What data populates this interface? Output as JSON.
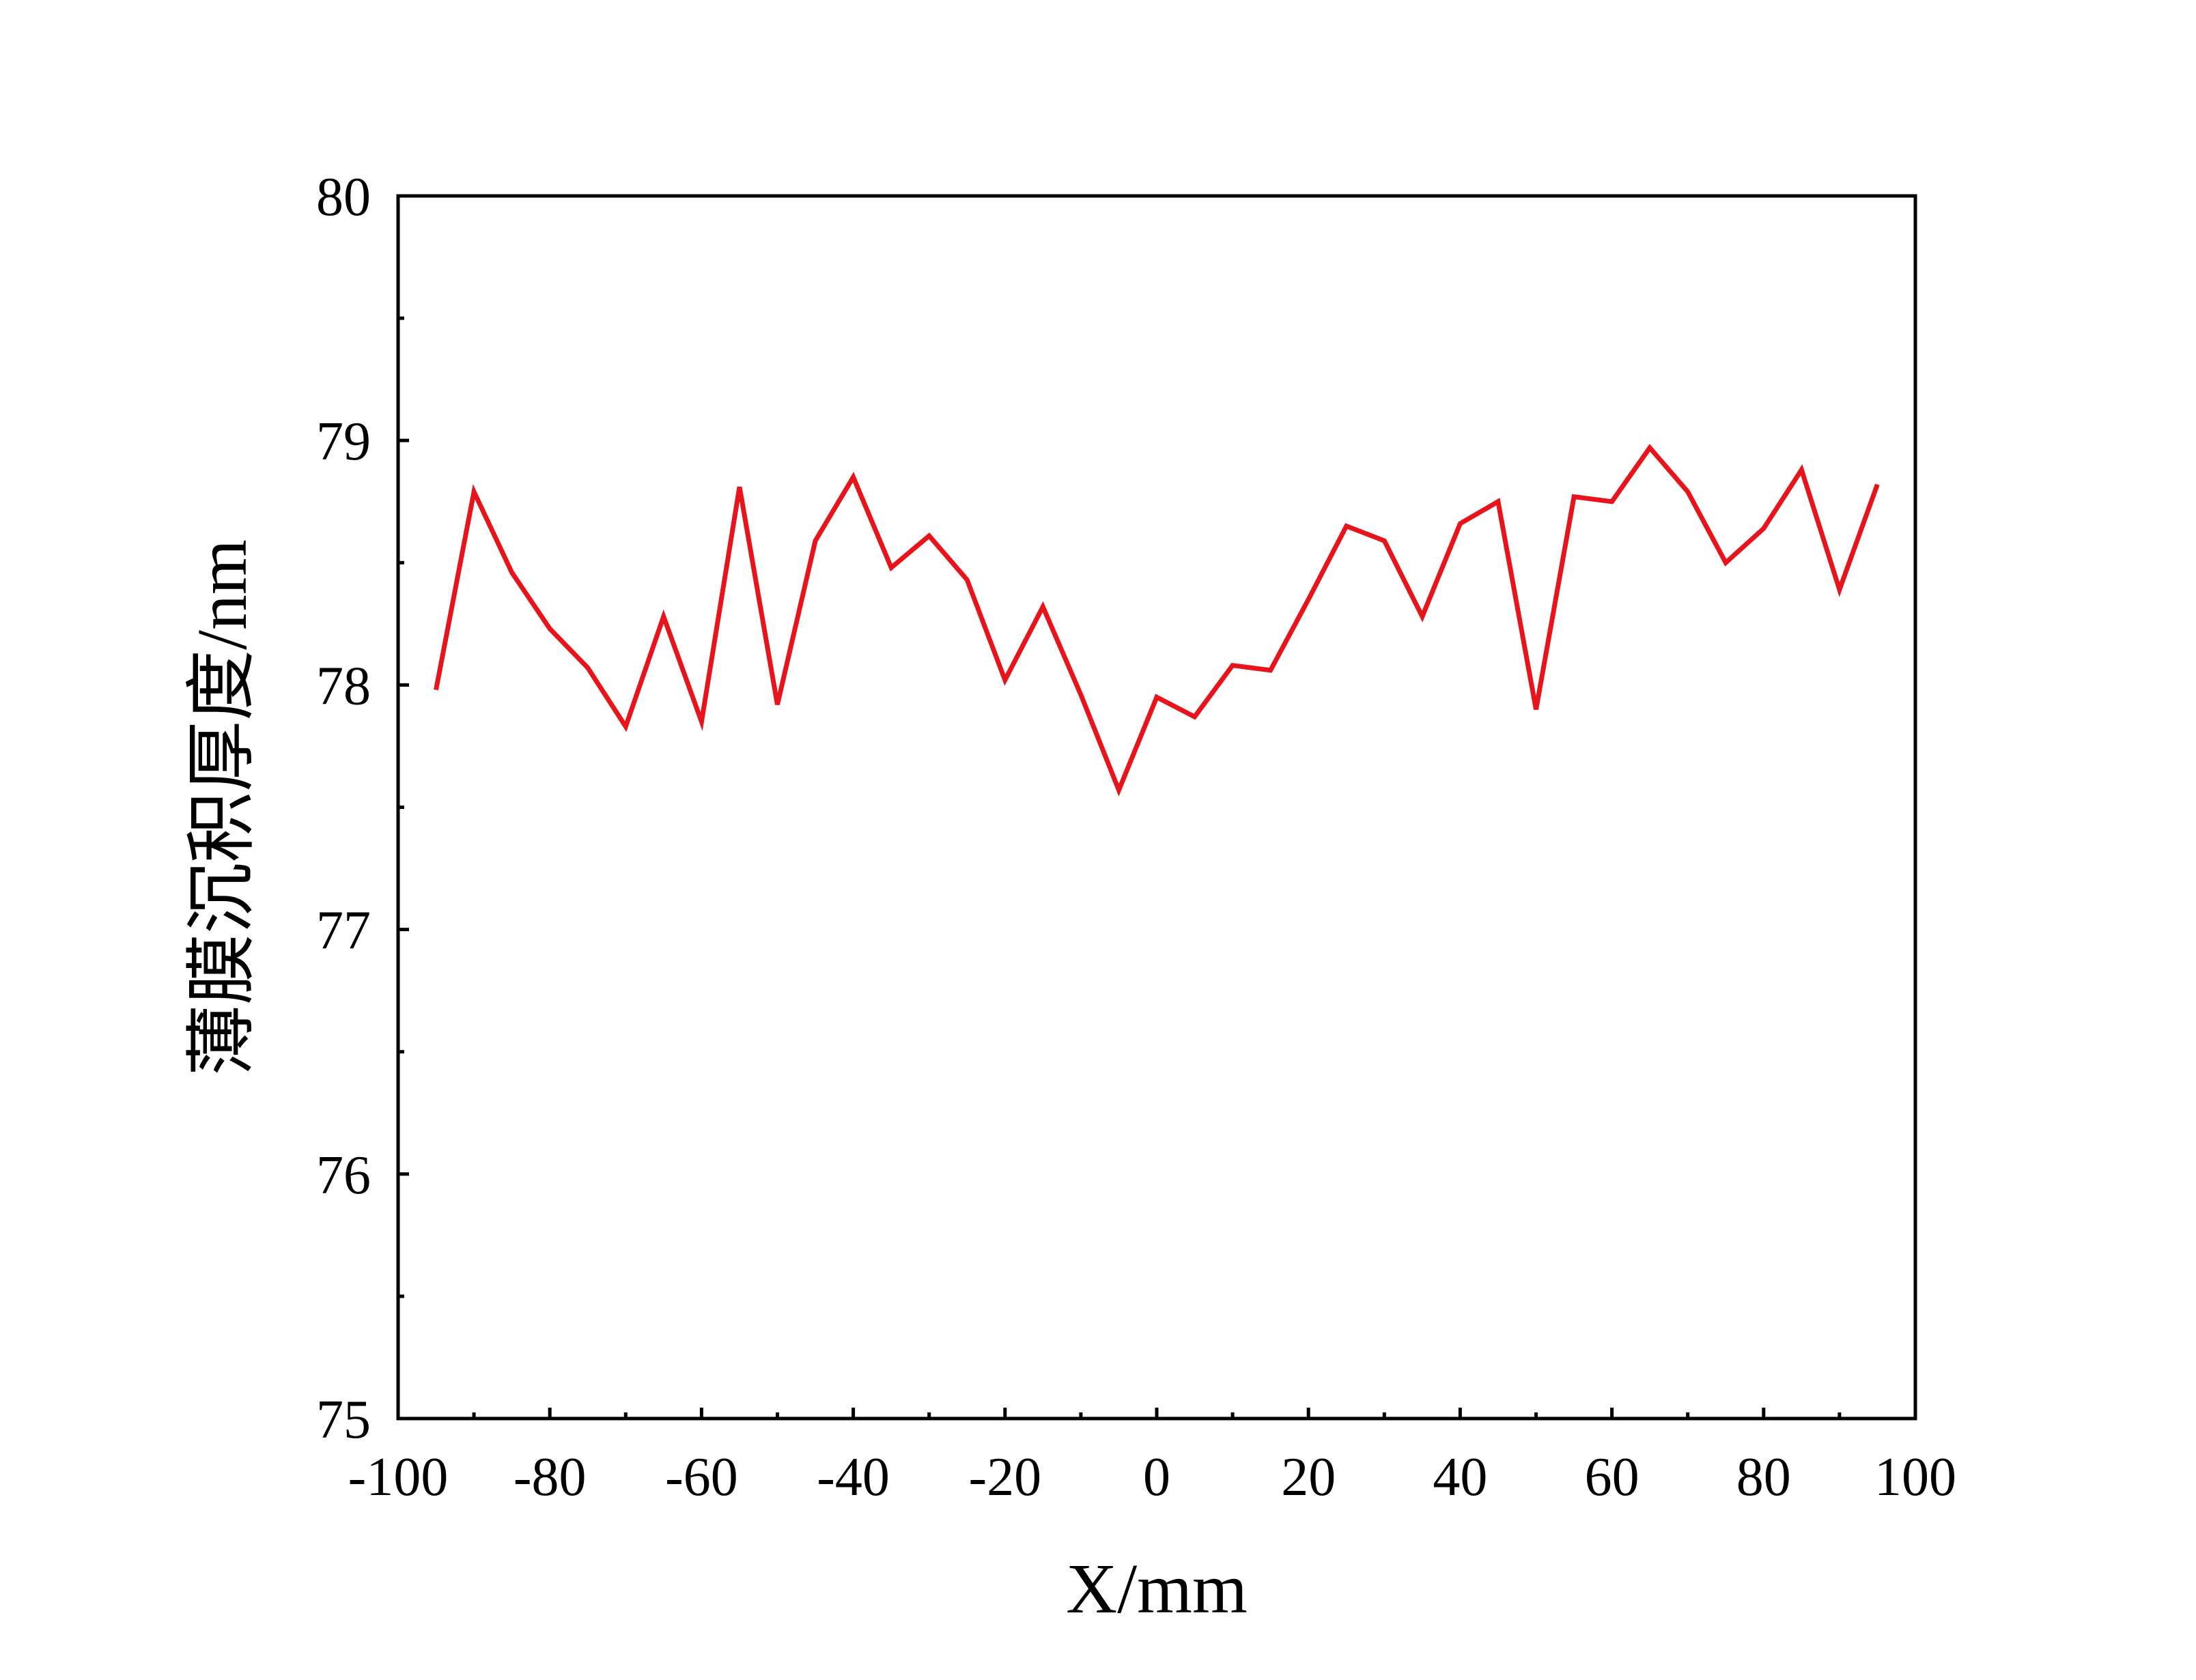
{
  "chart_data": {
    "type": "line",
    "xlabel": "X/mm",
    "ylabel": "薄膜沉积厚度/nm",
    "xlim": [
      -100,
      100
    ],
    "ylim": [
      75,
      80
    ],
    "x_ticks": [
      -100,
      -80,
      -60,
      -40,
      -20,
      0,
      20,
      40,
      60,
      80,
      100
    ],
    "x_tick_labels": [
      "-100",
      "-80",
      "-60",
      "-40",
      "-20",
      "0",
      "20",
      "40",
      "60",
      "80",
      "100"
    ],
    "y_ticks": [
      75,
      76,
      77,
      78,
      79,
      80
    ],
    "y_tick_labels": [
      "75",
      "76",
      "77",
      "78",
      "79",
      "80"
    ],
    "grid": false,
    "line_color": "#e8141b",
    "series": [
      {
        "x": [
          -95,
          -90,
          -85,
          -80,
          -75,
          -70,
          -65,
          -60,
          -55,
          -50,
          -45,
          -40,
          -35,
          -30,
          -25,
          -20,
          -15,
          -10,
          -5,
          0,
          5,
          10,
          15,
          20,
          25,
          30,
          35,
          40,
          45,
          50,
          55,
          60,
          65,
          70,
          75,
          80,
          85,
          90,
          95
        ],
        "values": [
          77.98,
          78.79,
          78.46,
          78.23,
          78.07,
          77.83,
          78.28,
          77.85,
          78.81,
          77.92,
          78.59,
          78.85,
          78.48,
          78.61,
          78.43,
          78.02,
          78.32,
          77.96,
          77.57,
          77.95,
          77.87,
          78.08,
          78.06,
          78.35,
          78.65,
          78.59,
          78.28,
          78.66,
          78.75,
          77.9,
          78.77,
          78.75,
          78.97,
          78.79,
          78.5,
          78.64,
          78.88,
          78.39,
          78.82
        ]
      }
    ]
  }
}
